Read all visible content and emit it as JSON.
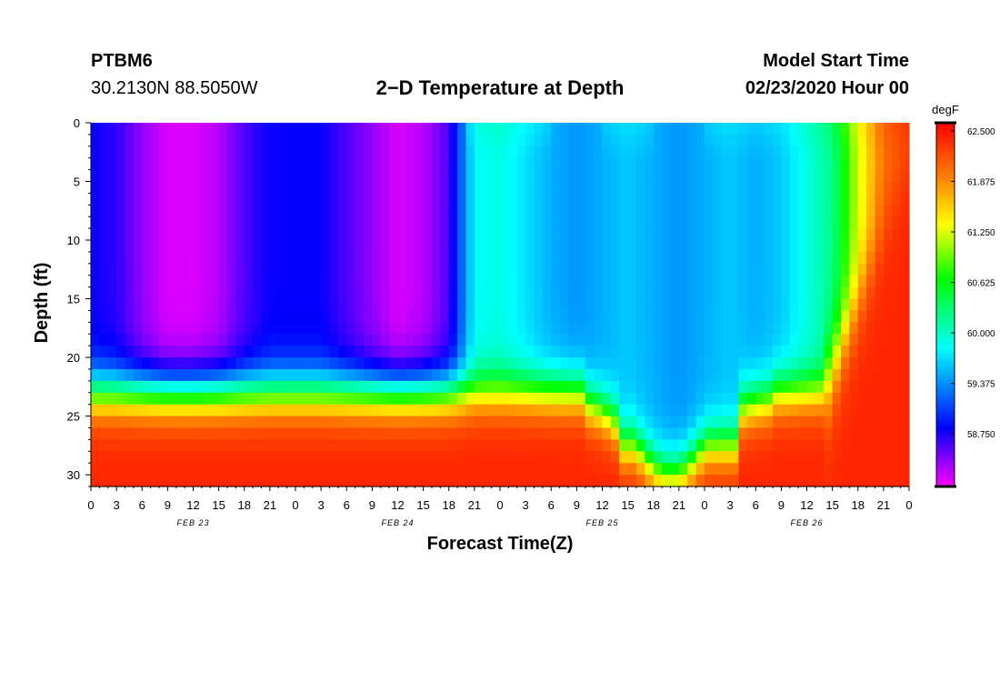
{
  "header": {
    "station_id": "PTBM6",
    "coordinates": "30.2130N 88.5050W",
    "title": "2−D Temperature at Depth",
    "start_label": "Model Start Time",
    "start_time": "02/23/2020 Hour 00"
  },
  "chart_data": {
    "type": "heatmap",
    "title": "2−D Temperature at Depth",
    "xlabel": "Forecast Time(Z)",
    "ylabel": "Depth (ft)",
    "x_range_hours": [
      0,
      96
    ],
    "y_range_ft": [
      0,
      31
    ],
    "y_ticks": [
      0,
      5,
      10,
      15,
      20,
      25,
      30
    ],
    "x_tick_labels": [
      "0",
      "3",
      "6",
      "9",
      "12",
      "15",
      "18",
      "21",
      "0",
      "3",
      "6",
      "9",
      "12",
      "15",
      "18",
      "21",
      "0",
      "3",
      "6",
      "9",
      "12",
      "15",
      "18",
      "21",
      "0",
      "3",
      "6",
      "9",
      "12",
      "15",
      "18",
      "21",
      "0"
    ],
    "date_labels": [
      {
        "label": "FEB 23",
        "hour": 12
      },
      {
        "label": "FEB 24",
        "hour": 36
      },
      {
        "label": "FEB 25",
        "hour": 60
      },
      {
        "label": "FEB 26",
        "hour": 84
      }
    ],
    "colorbar": {
      "unit": "degF",
      "min": 58.1,
      "max": 62.6,
      "tick_values": [
        "62.500",
        "61.875",
        "61.250",
        "60.625",
        "60.000",
        "59.375",
        "58.750"
      ],
      "colors": [
        "#ff00ff",
        "#0000ff",
        "#00ffff",
        "#00ff00",
        "#ffff00",
        "#ff8000",
        "#ff0000"
      ]
    },
    "surface_layer_profile": {
      "hours": [
        0,
        3,
        6,
        9,
        12,
        15,
        18,
        21,
        24,
        27,
        30,
        33,
        36,
        39,
        42,
        45,
        48,
        51,
        54,
        57,
        60,
        63,
        66,
        69,
        72,
        75,
        78,
        81,
        84,
        87,
        90,
        93,
        96
      ],
      "temps_degF": [
        58.8,
        58.7,
        58.4,
        58.2,
        58.2,
        58.3,
        58.6,
        58.8,
        58.8,
        58.8,
        58.6,
        58.4,
        58.2,
        58.3,
        58.6,
        59.8,
        59.9,
        59.7,
        59.5,
        59.4,
        59.5,
        59.6,
        59.5,
        59.4,
        59.5,
        59.6,
        59.5,
        59.6,
        59.9,
        60.2,
        61.2,
        62.0,
        62.2
      ]
    },
    "bottom_layer_temp_degF": 62.4
  },
  "axes": {
    "x_title": "Forecast Time(Z)",
    "y_title": "Depth (ft)"
  }
}
